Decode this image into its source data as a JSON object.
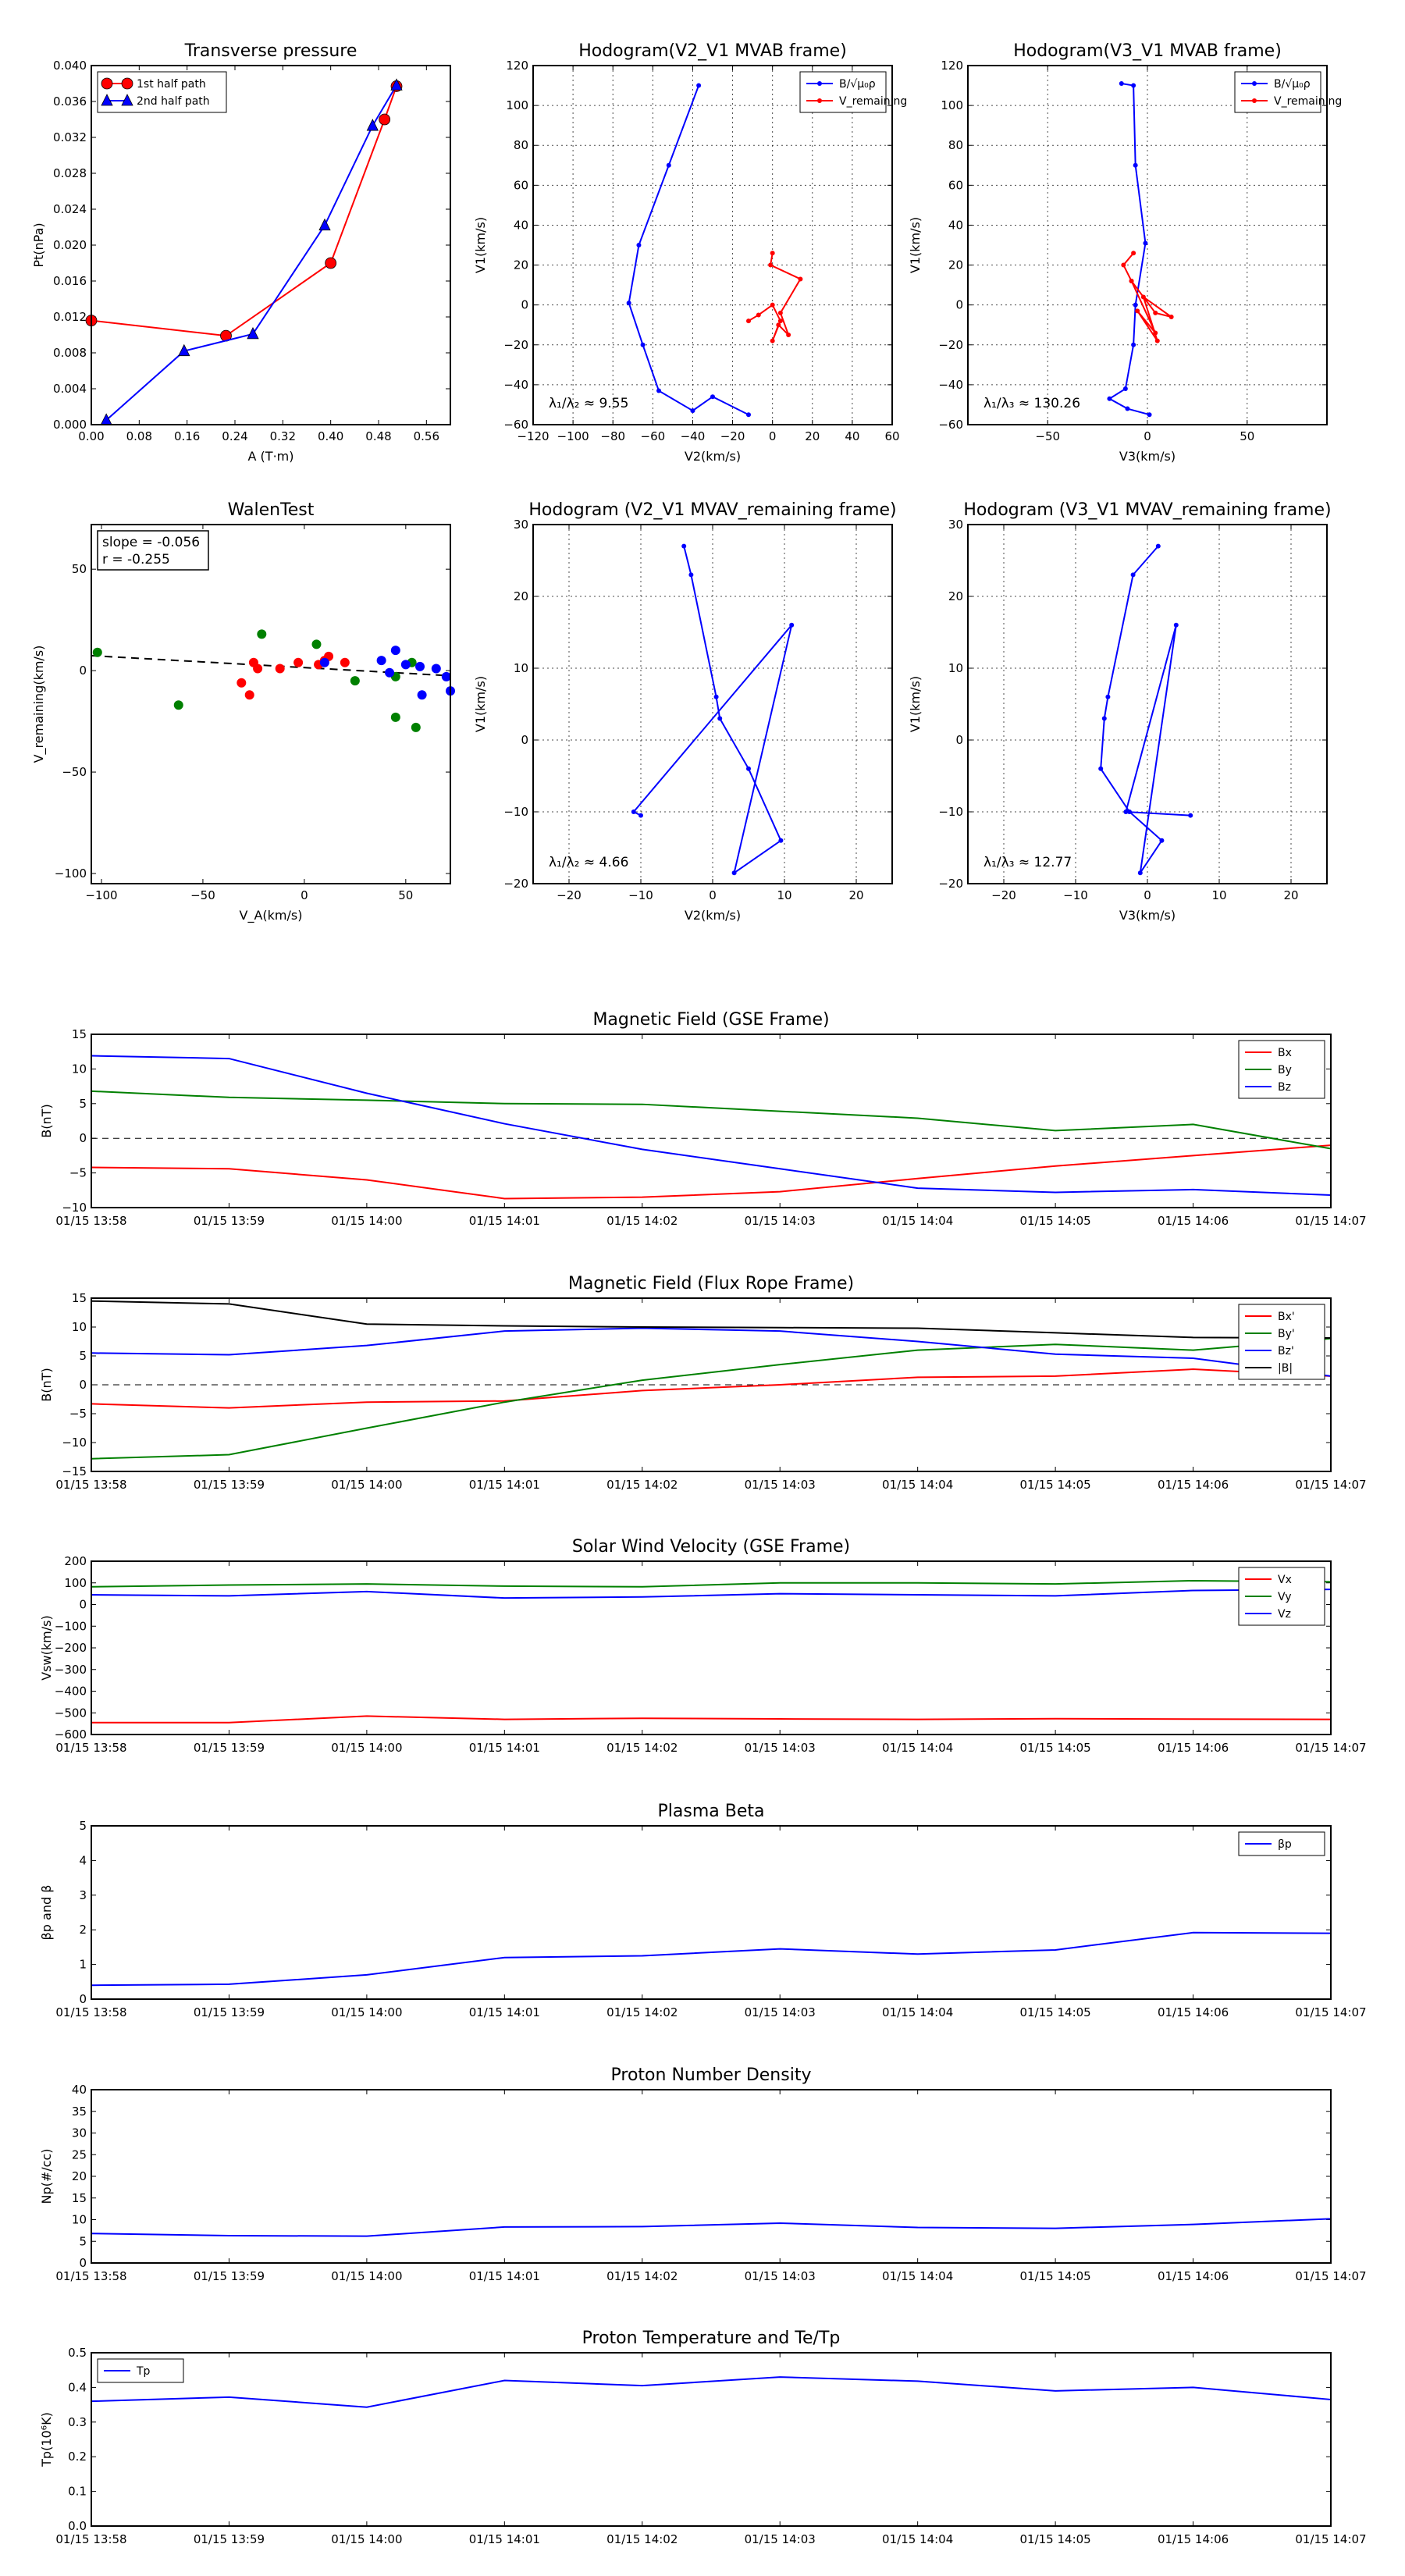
{
  "chart_data": [
    {
      "id": "tp",
      "type": "scatter",
      "title": "Transverse pressure",
      "xlabel": "A (T·m)",
      "ylabel": "Pt(nPa)",
      "xlim": [
        0.0,
        0.6
      ],
      "ylim": [
        0.0,
        0.04
      ],
      "x_ticks": [
        "0.00",
        "0.08",
        "0.16",
        "0.24",
        "0.32",
        "0.40",
        "0.48",
        "0.56"
      ],
      "y_ticks": [
        "0.000",
        "0.004",
        "0.008",
        "0.012",
        "0.016",
        "0.020",
        "0.024",
        "0.028",
        "0.032",
        "0.036",
        "0.040"
      ],
      "legend": "top-left",
      "series": [
        {
          "name": "1st half path",
          "color": "#ff0000",
          "marker": "circle",
          "x": [
            0.0,
            0.225,
            0.4,
            0.49,
            0.51
          ],
          "y": [
            0.0116,
            0.0099,
            0.018,
            0.034,
            0.0377
          ]
        },
        {
          "name": "2nd half path",
          "color": "#0000ff",
          "marker": "triangle",
          "x": [
            0.025,
            0.155,
            0.27,
            0.39,
            0.47,
            0.51
          ],
          "y": [
            0.0005,
            0.0082,
            0.0101,
            0.0222,
            0.0333,
            0.0378
          ]
        }
      ]
    },
    {
      "id": "h1",
      "type": "line",
      "title": "Hodogram(V2_V1 MVAB frame)",
      "xlabel": "V2(km/s)",
      "ylabel": "V1(km/s)",
      "xlim": [
        -120,
        60
      ],
      "ylim": [
        -60,
        120
      ],
      "x_ticks": [
        "−120",
        "−100",
        "−80",
        "−60",
        "−40",
        "−20",
        "0",
        "20",
        "40",
        "60"
      ],
      "y_ticks": [
        "−60",
        "−40",
        "−20",
        "0",
        "20",
        "40",
        "60",
        "80",
        "100",
        "120"
      ],
      "grid": true,
      "legend": "top-right",
      "annotation": "λ₁/λ₂ ≈ 9.55",
      "series": [
        {
          "name": "B/√μ₀ρ",
          "color": "#0000ff",
          "x": [
            -37,
            -52,
            -67,
            -72,
            -65,
            -57,
            -40,
            -30,
            -12
          ],
          "y": [
            110,
            70,
            30,
            1,
            -20,
            -43,
            -53,
            -46,
            -55
          ]
        },
        {
          "name": "V_remaining",
          "color": "#ff0000",
          "x": [
            -12,
            -7,
            0,
            4,
            0,
            3,
            8,
            4,
            14,
            -1,
            0
          ],
          "y": [
            -8,
            -5,
            0,
            -8,
            -18,
            -10,
            -15,
            -4,
            13,
            20,
            26
          ]
        }
      ]
    },
    {
      "id": "h2",
      "type": "line",
      "title": "Hodogram(V3_V1 MVAB frame)",
      "xlabel": "V3(km/s)",
      "ylabel": "V1(km/s)",
      "xlim": [
        -90,
        90
      ],
      "ylim": [
        -60,
        120
      ],
      "x_ticks": [
        "−50",
        "0",
        "50"
      ],
      "y_ticks": [
        "−60",
        "−40",
        "−20",
        "0",
        "20",
        "40",
        "60",
        "80",
        "100",
        "120"
      ],
      "grid": true,
      "legend": "top-right",
      "annotation": "λ₁/λ₃ ≈ 130.26",
      "series": [
        {
          "name": "B/√μ₀ρ",
          "color": "#0000ff",
          "x": [
            -13,
            -7,
            -6,
            -1,
            -6,
            -7,
            -11,
            -19,
            -10,
            1
          ],
          "y": [
            111,
            110,
            70,
            31,
            0,
            -20,
            -42,
            -47,
            -52,
            -55
          ]
        },
        {
          "name": "V_remaining",
          "color": "#ff0000",
          "x": [
            -7,
            -12,
            -8,
            4,
            12,
            -2,
            5,
            -5,
            4,
            -8
          ],
          "y": [
            26,
            20,
            12,
            -4,
            -6,
            4,
            -18,
            -3,
            -14,
            12
          ]
        }
      ]
    },
    {
      "id": "walen",
      "type": "scatter",
      "title": "WalenTest",
      "xlabel": "V_A(km/s)",
      "ylabel": "V_remaining(km/s)",
      "xlim": [
        -105,
        72
      ],
      "ylim": [
        -105,
        72
      ],
      "x_ticks": [
        "−100",
        "−50",
        "0",
        "50"
      ],
      "y_ticks": [
        "−100",
        "−50",
        "0",
        "50"
      ],
      "annotation_lines": [
        "slope = -0.056",
        "r = -0.255"
      ],
      "fit": {
        "slope": -0.056,
        "intercept": 1.5
      },
      "series": [
        {
          "name": "",
          "color": "#008000",
          "x": [
            -102,
            -62,
            -21,
            6,
            25,
            45,
            45,
            53,
            55
          ],
          "y": [
            9,
            -17,
            18,
            13,
            -5,
            -23,
            -3,
            4,
            -28
          ]
        },
        {
          "name": "",
          "color": "#ff0000",
          "x": [
            -31,
            -27,
            -25,
            -23,
            -12,
            -3,
            7,
            10,
            12,
            20
          ],
          "y": [
            -6,
            -12,
            4,
            1,
            1,
            4,
            3,
            5,
            7,
            4
          ]
        },
        {
          "name": "",
          "color": "#0000ff",
          "x": [
            10,
            38,
            42,
            45,
            50,
            57,
            58,
            65,
            70,
            72
          ],
          "y": [
            4,
            5,
            -1,
            10,
            3,
            2,
            -12,
            1,
            -3,
            -10
          ]
        }
      ]
    },
    {
      "id": "h3",
      "type": "line",
      "title": "Hodogram (V2_V1 MVAV_remaining frame)",
      "xlabel": "V2(km/s)",
      "ylabel": "V1(km/s)",
      "xlim": [
        -25,
        25
      ],
      "ylim": [
        -20,
        30
      ],
      "x_ticks": [
        "−20",
        "−10",
        "0",
        "10",
        "20"
      ],
      "y_ticks": [
        "−20",
        "−10",
        "0",
        "10",
        "20",
        "30"
      ],
      "grid": true,
      "annotation": "λ₁/λ₂ ≈ 4.66",
      "series": [
        {
          "name": "",
          "color": "#0000ff",
          "x": [
            -4,
            -3,
            0.5,
            1,
            5,
            9.5,
            3,
            11,
            -11,
            -10
          ],
          "y": [
            27,
            23,
            6,
            3,
            -4,
            -14,
            -18.5,
            16,
            -10,
            -10.5
          ]
        }
      ]
    },
    {
      "id": "h4",
      "type": "line",
      "title": "Hodogram (V3_V1 MVAV_remaining frame)",
      "xlabel": "V3(km/s)",
      "ylabel": "V1(km/s)",
      "xlim": [
        -25,
        25
      ],
      "ylim": [
        -20,
        30
      ],
      "x_ticks": [
        "−20",
        "−10",
        "0",
        "10",
        "20"
      ],
      "y_ticks": [
        "−20",
        "−10",
        "0",
        "10",
        "20",
        "30"
      ],
      "grid": true,
      "annotation": "λ₁/λ₃ ≈ 12.77",
      "series": [
        {
          "name": "",
          "color": "#0000ff",
          "x": [
            1.5,
            -2,
            -5.5,
            -6,
            -6.5,
            -2.5,
            2,
            -1,
            4,
            -3,
            6
          ],
          "y": [
            27,
            23,
            6,
            3,
            -4,
            -10,
            -14,
            -18.5,
            16,
            -10,
            -10.5
          ]
        }
      ]
    },
    {
      "id": "mf_gse",
      "type": "line",
      "title": "Magnetic Field (GSE Frame)",
      "ylabel": "B(nT)",
      "x": [
        "01/15 13:58",
        "01/15 13:59",
        "01/15 14:00",
        "01/15 14:01",
        "01/15 14:02",
        "01/15 14:03",
        "01/15 14:04",
        "01/15 14:05",
        "01/15 14:06",
        "01/15 14:07"
      ],
      "ylim": [
        -10,
        15
      ],
      "y_ticks": [
        "−10",
        "−5",
        "0",
        "5",
        "10",
        "15"
      ],
      "zero_line": true,
      "legend": "top-right",
      "series": [
        {
          "name": "Bx",
          "color": "#ff0000",
          "values": [
            -4.2,
            -4.4,
            -6.0,
            -8.7,
            -8.5,
            -7.7,
            -5.8,
            -4.0,
            -2.5,
            -1.0
          ]
        },
        {
          "name": "By",
          "color": "#008000",
          "values": [
            6.8,
            5.9,
            5.5,
            5.0,
            4.9,
            3.9,
            2.9,
            1.1,
            2.0,
            -1.5
          ]
        },
        {
          "name": "Bz",
          "color": "#0000ff",
          "values": [
            11.9,
            11.5,
            6.5,
            2.1,
            -1.6,
            -4.4,
            -7.2,
            -7.8,
            -7.4,
            -8.2
          ]
        }
      ]
    },
    {
      "id": "mf_fr",
      "type": "line",
      "title": "Magnetic Field (Flux Rope Frame)",
      "ylabel": "B(nT)",
      "x": [
        "01/15 13:58",
        "01/15 13:59",
        "01/15 14:00",
        "01/15 14:01",
        "01/15 14:02",
        "01/15 14:03",
        "01/15 14:04",
        "01/15 14:05",
        "01/15 14:06",
        "01/15 14:07"
      ],
      "ylim": [
        -15,
        15
      ],
      "y_ticks": [
        "−15",
        "−10",
        "−5",
        "0",
        "5",
        "10",
        "15"
      ],
      "zero_line": true,
      "legend": "top-right",
      "series": [
        {
          "name": "Bx'",
          "color": "#ff0000",
          "values": [
            -3.3,
            -4.0,
            -3.0,
            -2.8,
            -1.0,
            0.0,
            1.3,
            1.5,
            2.7,
            1.5
          ]
        },
        {
          "name": "By'",
          "color": "#008000",
          "values": [
            -12.8,
            -12.1,
            -7.5,
            -3.0,
            0.8,
            3.5,
            6.0,
            7.0,
            6.0,
            8.0
          ]
        },
        {
          "name": "Bz'",
          "color": "#0000ff",
          "values": [
            5.5,
            5.2,
            6.8,
            9.3,
            9.8,
            9.3,
            7.5,
            5.3,
            4.6,
            1.5
          ]
        },
        {
          "name": "|B|",
          "color": "#000000",
          "values": [
            14.5,
            14.0,
            10.5,
            10.2,
            10.0,
            9.9,
            9.8,
            9.0,
            8.2,
            8.1
          ]
        }
      ]
    },
    {
      "id": "vsw",
      "type": "line",
      "title": "Solar Wind Velocity (GSE Frame)",
      "ylabel": "Vsw(km/s)",
      "x": [
        "01/15 13:58",
        "01/15 13:59",
        "01/15 14:00",
        "01/15 14:01",
        "01/15 14:02",
        "01/15 14:03",
        "01/15 14:04",
        "01/15 14:05",
        "01/15 14:06",
        "01/15 14:07"
      ],
      "ylim": [
        -600,
        200
      ],
      "y_ticks": [
        "−600",
        "−500",
        "−400",
        "−300",
        "−200",
        "−100",
        "0",
        "100",
        "200"
      ],
      "legend": "top-right",
      "series": [
        {
          "name": "Vx",
          "color": "#ff0000",
          "values": [
            -545,
            -545,
            -515,
            -530,
            -525,
            -528,
            -530,
            -527,
            -529,
            -530
          ]
        },
        {
          "name": "Vy",
          "color": "#008000",
          "values": [
            82,
            90,
            95,
            85,
            82,
            100,
            100,
            95,
            110,
            105
          ]
        },
        {
          "name": "Vz",
          "color": "#0000ff",
          "values": [
            45,
            40,
            60,
            30,
            35,
            50,
            45,
            40,
            65,
            70
          ]
        }
      ]
    },
    {
      "id": "beta",
      "type": "line",
      "title": "Plasma Beta",
      "ylabel": "βp and β",
      "x": [
        "01/15 13:58",
        "01/15 13:59",
        "01/15 14:00",
        "01/15 14:01",
        "01/15 14:02",
        "01/15 14:03",
        "01/15 14:04",
        "01/15 14:05",
        "01/15 14:06",
        "01/15 14:07"
      ],
      "ylim": [
        0,
        5
      ],
      "y_ticks": [
        "0",
        "1",
        "2",
        "3",
        "4",
        "5"
      ],
      "legend": "top-right",
      "series": [
        {
          "name": "βp",
          "color": "#0000ff",
          "values": [
            0.4,
            0.43,
            0.7,
            1.2,
            1.25,
            1.45,
            1.3,
            1.42,
            1.92,
            1.9
          ]
        }
      ]
    },
    {
      "id": "np",
      "type": "line",
      "title": "Proton Number Density",
      "ylabel": "Np(#/cc)",
      "x": [
        "01/15 13:58",
        "01/15 13:59",
        "01/15 14:00",
        "01/15 14:01",
        "01/15 14:02",
        "01/15 14:03",
        "01/15 14:04",
        "01/15 14:05",
        "01/15 14:06",
        "01/15 14:07"
      ],
      "ylim": [
        0,
        40
      ],
      "y_ticks": [
        "0",
        "5",
        "10",
        "15",
        "20",
        "25",
        "30",
        "35",
        "40"
      ],
      "series": [
        {
          "name": "",
          "color": "#0000ff",
          "values": [
            6.8,
            6.3,
            6.2,
            8.3,
            8.4,
            9.2,
            8.2,
            8.0,
            8.9,
            10.2
          ]
        }
      ]
    },
    {
      "id": "tp_temp",
      "type": "line",
      "title": "Proton Temperature and Te/Tp",
      "ylabel": "Tp(10⁶K)",
      "x": [
        "01/15 13:58",
        "01/15 13:59",
        "01/15 14:00",
        "01/15 14:01",
        "01/15 14:02",
        "01/15 14:03",
        "01/15 14:04",
        "01/15 14:05",
        "01/15 14:06",
        "01/15 14:07"
      ],
      "ylim": [
        0,
        0.5
      ],
      "y_ticks": [
        "0.0",
        "0.1",
        "0.2",
        "0.3",
        "0.4",
        "0.5"
      ],
      "legend": "top-left",
      "series": [
        {
          "name": "Tp",
          "color": "#0000ff",
          "values": [
            0.36,
            0.372,
            0.343,
            0.42,
            0.405,
            0.43,
            0.418,
            0.39,
            0.4,
            0.365
          ]
        }
      ]
    }
  ]
}
